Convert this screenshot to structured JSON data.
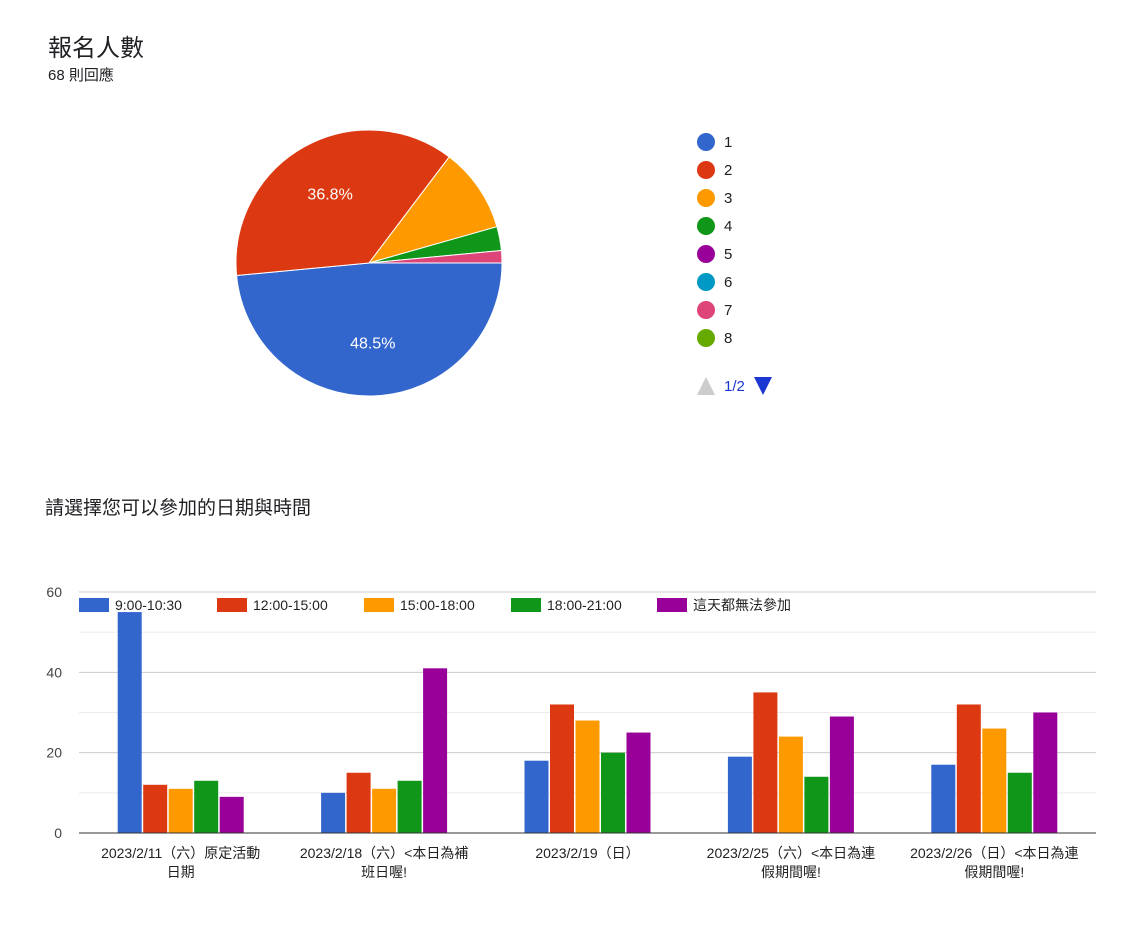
{
  "pie_block": {
    "title": "報名人數",
    "responses": "68 則回應",
    "pager": {
      "label": "1/2"
    }
  },
  "bar_block": {
    "title": "請選擇您可以參加的日期與時間"
  },
  "chart_data": [
    {
      "type": "pie",
      "labels": [
        "1",
        "2",
        "3",
        "4",
        "5",
        "6",
        "7",
        "8"
      ],
      "values": [
        48.5,
        36.8,
        10.3,
        2.9,
        0,
        0,
        1.5,
        0
      ],
      "colors": [
        "#3366cc",
        "#dc3912",
        "#ff9900",
        "#109618",
        "#990099",
        "#0099c6",
        "#dd4477",
        "#66aa00"
      ],
      "data_labels": [
        "48.5%",
        "36.8%",
        "",
        "",
        "",
        "",
        "",
        ""
      ],
      "legend_position": "right"
    },
    {
      "type": "bar",
      "categories": [
        [
          "2023/2/11（六）原定活動",
          "日期"
        ],
        [
          "2023/2/18（六）<本日為補",
          "班日喔!"
        ],
        [
          "2023/2/19（日）"
        ],
        [
          "2023/2/25（六）<本日為連",
          "假期間喔!"
        ],
        [
          "2023/2/26（日）<本日為連",
          "假期間喔!"
        ]
      ],
      "series": [
        {
          "name": "9:00-10:30",
          "color": "#3366cc",
          "values": [
            55,
            10,
            18,
            19,
            17
          ]
        },
        {
          "name": "12:00-15:00",
          "color": "#dc3912",
          "values": [
            12,
            15,
            32,
            35,
            32
          ]
        },
        {
          "name": "15:00-18:00",
          "color": "#ff9900",
          "values": [
            11,
            11,
            28,
            24,
            26
          ]
        },
        {
          "name": "18:00-21:00",
          "color": "#109618",
          "values": [
            13,
            13,
            20,
            14,
            15
          ]
        },
        {
          "name": "這天都無法參加",
          "color": "#990099",
          "values": [
            9,
            41,
            25,
            29,
            30
          ]
        }
      ],
      "yticks": [
        "0",
        "20",
        "40",
        "60"
      ],
      "ylim": [
        0,
        60
      ],
      "grid": true,
      "legend_position": "top"
    }
  ]
}
